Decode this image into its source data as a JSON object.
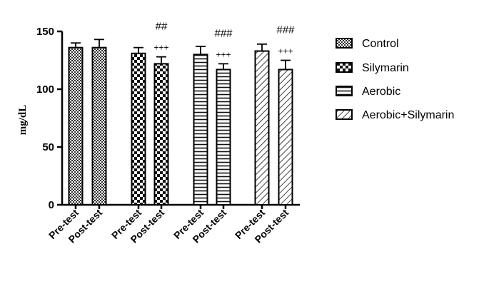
{
  "chart_data": {
    "type": "bar",
    "ylabel": "mg/dL",
    "xlabel": "",
    "ylim": [
      0,
      150
    ],
    "yticks": [
      "0",
      "50",
      "100",
      "150"
    ],
    "categories": [
      "Pre-test",
      "Post-test",
      "Pre-test",
      "Post-test",
      "Pre-test",
      "Post-test",
      "Pre-test",
      "Post-test"
    ],
    "groups": [
      "Control",
      "Silymarin",
      "Aerobic",
      "Aerobic+Silymarin"
    ],
    "values": [
      136,
      136,
      131,
      122,
      130,
      117,
      133,
      117
    ],
    "errors": [
      4,
      7,
      5,
      6,
      7,
      5,
      6,
      8
    ],
    "series_index": [
      0,
      0,
      1,
      1,
      2,
      2,
      3,
      3
    ],
    "annotations": [
      {
        "bar": 3,
        "upper": "##",
        "lower": "+++"
      },
      {
        "bar": 5,
        "upper": "###",
        "lower": "+++"
      },
      {
        "bar": 7,
        "upper": "###",
        "lower": "+++"
      }
    ],
    "legend": {
      "placement": "right",
      "entries": [
        {
          "label": "Control",
          "pattern": "checker-small"
        },
        {
          "label": "Silymarin",
          "pattern": "checker-large"
        },
        {
          "label": "Aerobic",
          "pattern": "horizontal-lines"
        },
        {
          "label": "Aerobic+Silymarin",
          "pattern": "diagonal-lines"
        }
      ]
    },
    "grid": false
  }
}
